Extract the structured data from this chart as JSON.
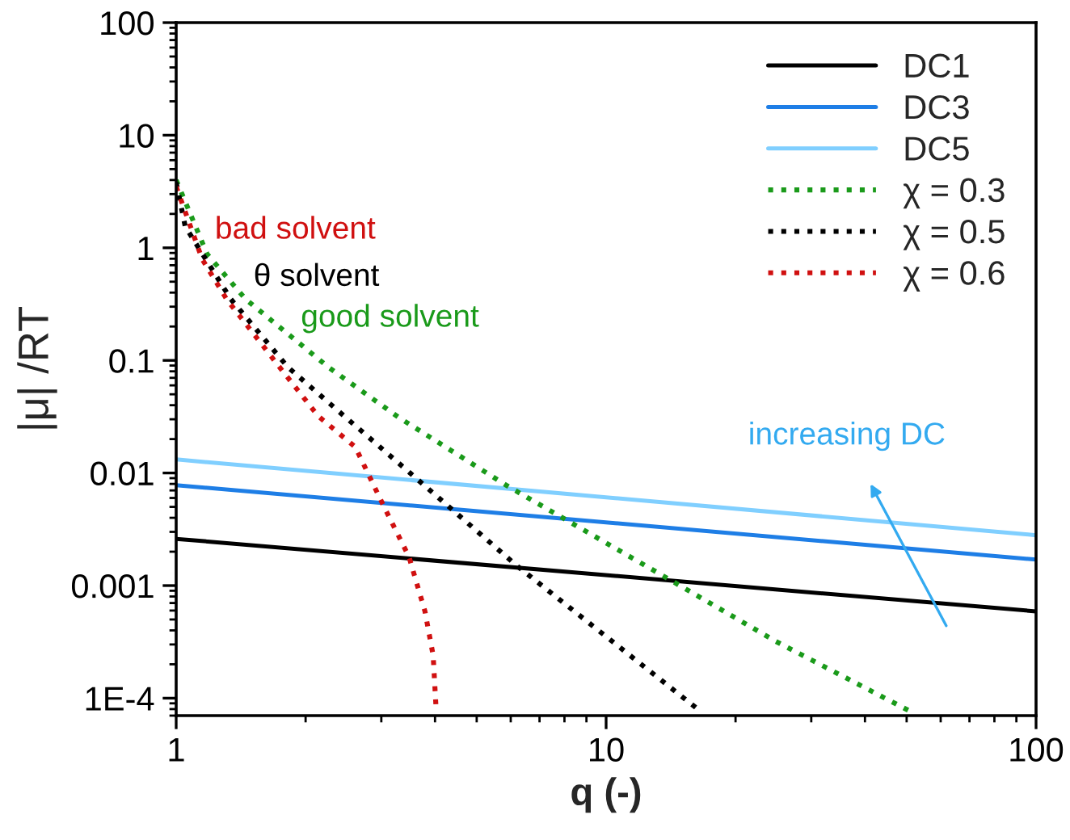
{
  "chart_data": {
    "type": "line",
    "xlabel": "q (-)",
    "ylabel": "|μ| /RT",
    "log": "xy",
    "xlim": [
      1,
      100
    ],
    "ylim": [
      7e-05,
      100
    ],
    "xticks": [
      1,
      10,
      100
    ],
    "yticks": [
      {
        "value": 0.0001,
        "label": "1E-4"
      },
      0.001,
      0.01,
      0.1,
      1,
      10,
      100
    ],
    "grid": false,
    "legend": "top right",
    "series": [
      {
        "name": "DC1",
        "color": "#000000",
        "line_style": "solid",
        "x": [
          1,
          100
        ],
        "values": [
          0.0026,
          0.00059
        ]
      },
      {
        "name": "DC3",
        "color": "#1e7ee6",
        "line_style": "solid",
        "x": [
          1,
          100
        ],
        "values": [
          0.0078,
          0.0017
        ]
      },
      {
        "name": "DC5",
        "color": "#80cfff",
        "line_style": "solid",
        "x": [
          1,
          100
        ],
        "values": [
          0.0132,
          0.0028
        ]
      },
      {
        "name": "χ = 0.3",
        "color": "#1a9a1a",
        "line_style": "dotted",
        "x": [
          1,
          1.18,
          1.45,
          2.26,
          3.3,
          5.85,
          14.4,
          24.8,
          51.8
        ],
        "values": [
          4,
          0.88,
          0.35,
          0.087,
          0.031,
          0.0078,
          0.00107,
          0.00032,
          7.4e-05
        ]
      },
      {
        "name": "χ = 0.5",
        "color": "#000000",
        "line_style": "dotted",
        "x": [
          1,
          1.05,
          1.34,
          1.82,
          2.46,
          3.6,
          6.2,
          16.4
        ],
        "values": [
          3.8,
          1.54,
          0.35,
          0.087,
          0.032,
          0.0091,
          0.0015,
          7.9e-05
        ]
      },
      {
        "name": "χ = 0.6",
        "color": "#d01010",
        "line_style": "dotted",
        "x": [
          1,
          1.15,
          1.31,
          1.74,
          2.14,
          2.61,
          3.03,
          3.48,
          3.79,
          3.96,
          4.02
        ],
        "values": [
          3.5,
          0.79,
          0.35,
          0.087,
          0.032,
          0.017,
          0.0052,
          0.0018,
          0.00059,
          0.00024,
          8.5e-05
        ]
      }
    ],
    "annotations": [
      "bad solvent",
      "θ solvent",
      "good solvent",
      "increasing DC"
    ]
  }
}
